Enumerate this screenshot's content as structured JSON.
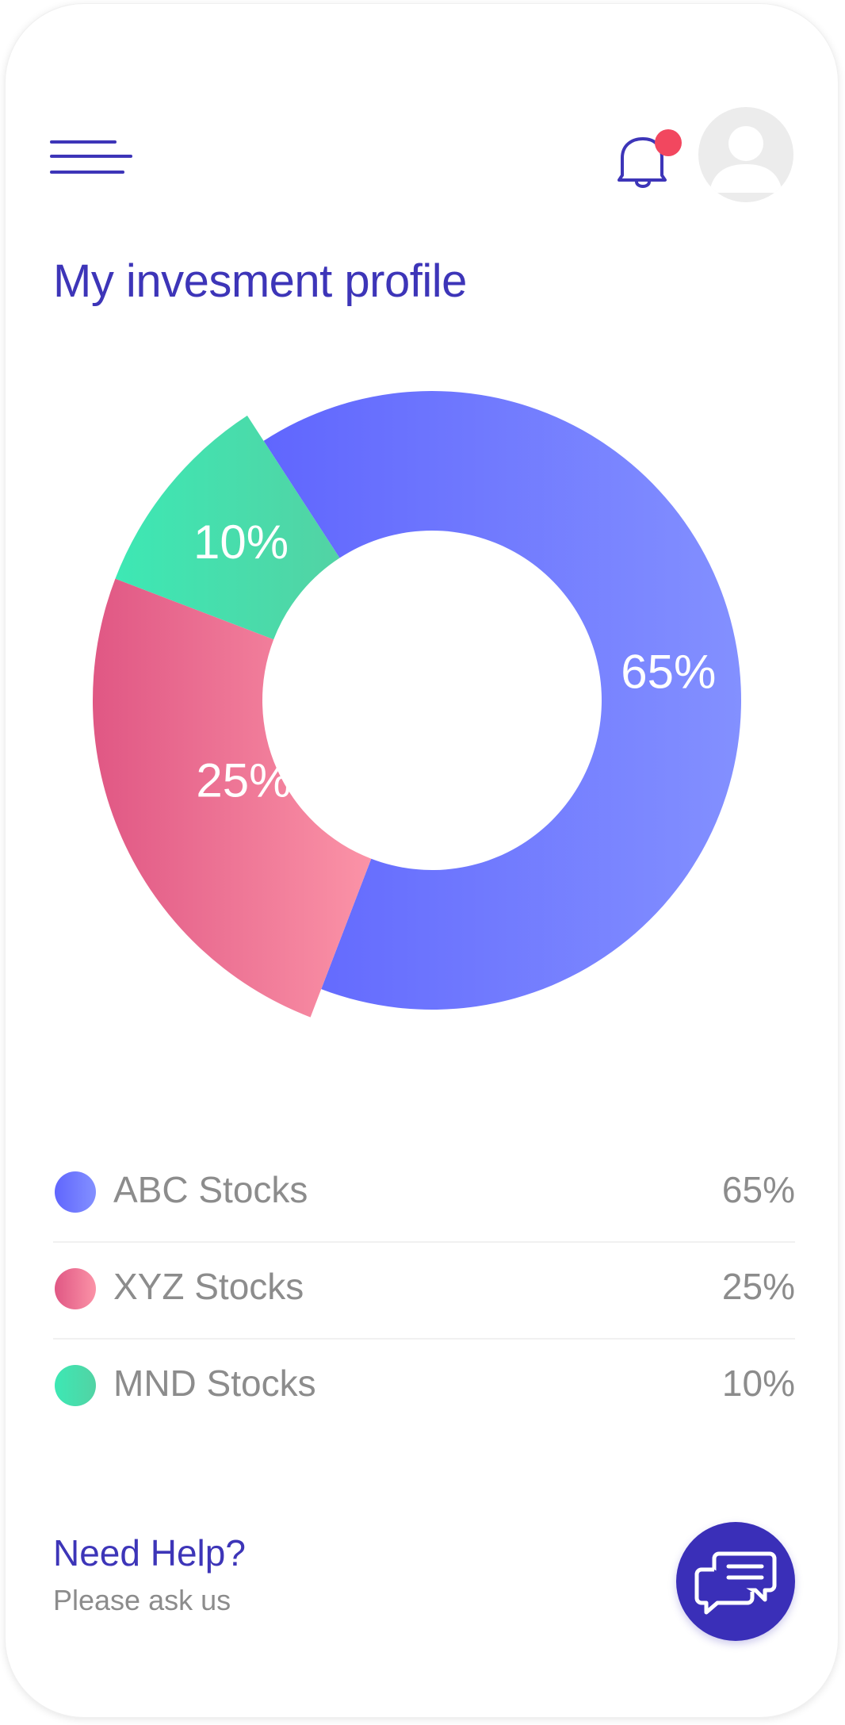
{
  "header": {
    "menu_icon": "hamburger-menu-icon",
    "notification_icon": "bell-icon",
    "avatar_icon": "user-avatar-icon"
  },
  "page_title": "My invesment profile",
  "chart_data": {
    "type": "pie",
    "categories": [
      "ABC Stocks",
      "XYZ Stocks",
      "MND Stocks"
    ],
    "values": [
      65,
      25,
      10
    ],
    "labels": [
      "65%",
      "25%",
      "10%"
    ],
    "colors": [
      "#6f76ff",
      "#ee6b92",
      "#44e2b1"
    ],
    "title": ""
  },
  "legend": {
    "items": [
      {
        "label": "ABC Stocks",
        "value": "65%",
        "color": "#6f76ff"
      },
      {
        "label": "XYZ Stocks",
        "value": "25%",
        "color": "#ee6b92"
      },
      {
        "label": "MND Stocks",
        "value": "10%",
        "color": "#44e2b1"
      }
    ]
  },
  "help": {
    "title": "Need Help?",
    "subtitle": "Please ask us",
    "chat_icon": "chat-bubbles-icon"
  }
}
